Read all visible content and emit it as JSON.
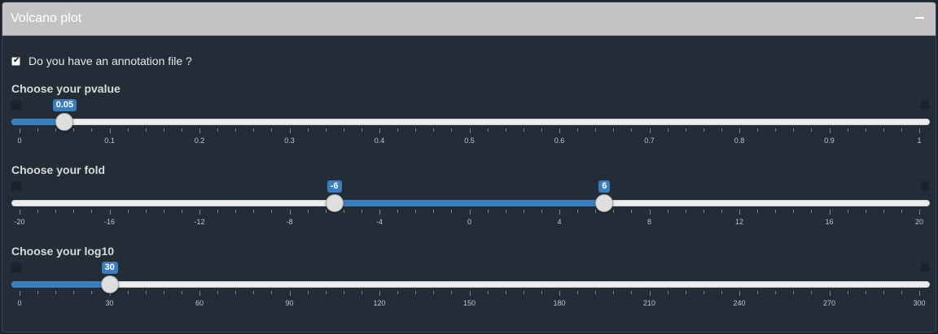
{
  "panel": {
    "title": "Volcano plot",
    "collapse_icon": "minus-icon"
  },
  "annotation_checkbox": {
    "label": "Do you have an annotation file ?",
    "checked": true
  },
  "sliders": [
    {
      "key": "pvalue",
      "label": "Choose your pvalue",
      "min": 0,
      "max": 1,
      "values": [
        0.05
      ],
      "value_labels": [
        "0.05"
      ],
      "ticks": [
        "0",
        "0.1",
        "0.2",
        "0.3",
        "0.4",
        "0.5",
        "0.6",
        "0.7",
        "0.8",
        "0.9",
        "1"
      ]
    },
    {
      "key": "fold",
      "label": "Choose your fold",
      "min": -20,
      "max": 20,
      "values": [
        -6,
        6
      ],
      "value_labels": [
        "-6",
        "6"
      ],
      "ticks": [
        "-20",
        "-16",
        "-12",
        "-8",
        "-4",
        "0",
        "4",
        "8",
        "12",
        "16",
        "20"
      ]
    },
    {
      "key": "log10",
      "label": "Choose your log10",
      "min": 0,
      "max": 300,
      "values": [
        30
      ],
      "value_labels": [
        "30"
      ],
      "ticks": [
        "0",
        "30",
        "60",
        "90",
        "120",
        "150",
        "180",
        "210",
        "240",
        "270",
        "300"
      ]
    }
  ],
  "colors": {
    "accent": "#3a7ec0",
    "header": "#c3c3c3",
    "background": "#222d38"
  }
}
